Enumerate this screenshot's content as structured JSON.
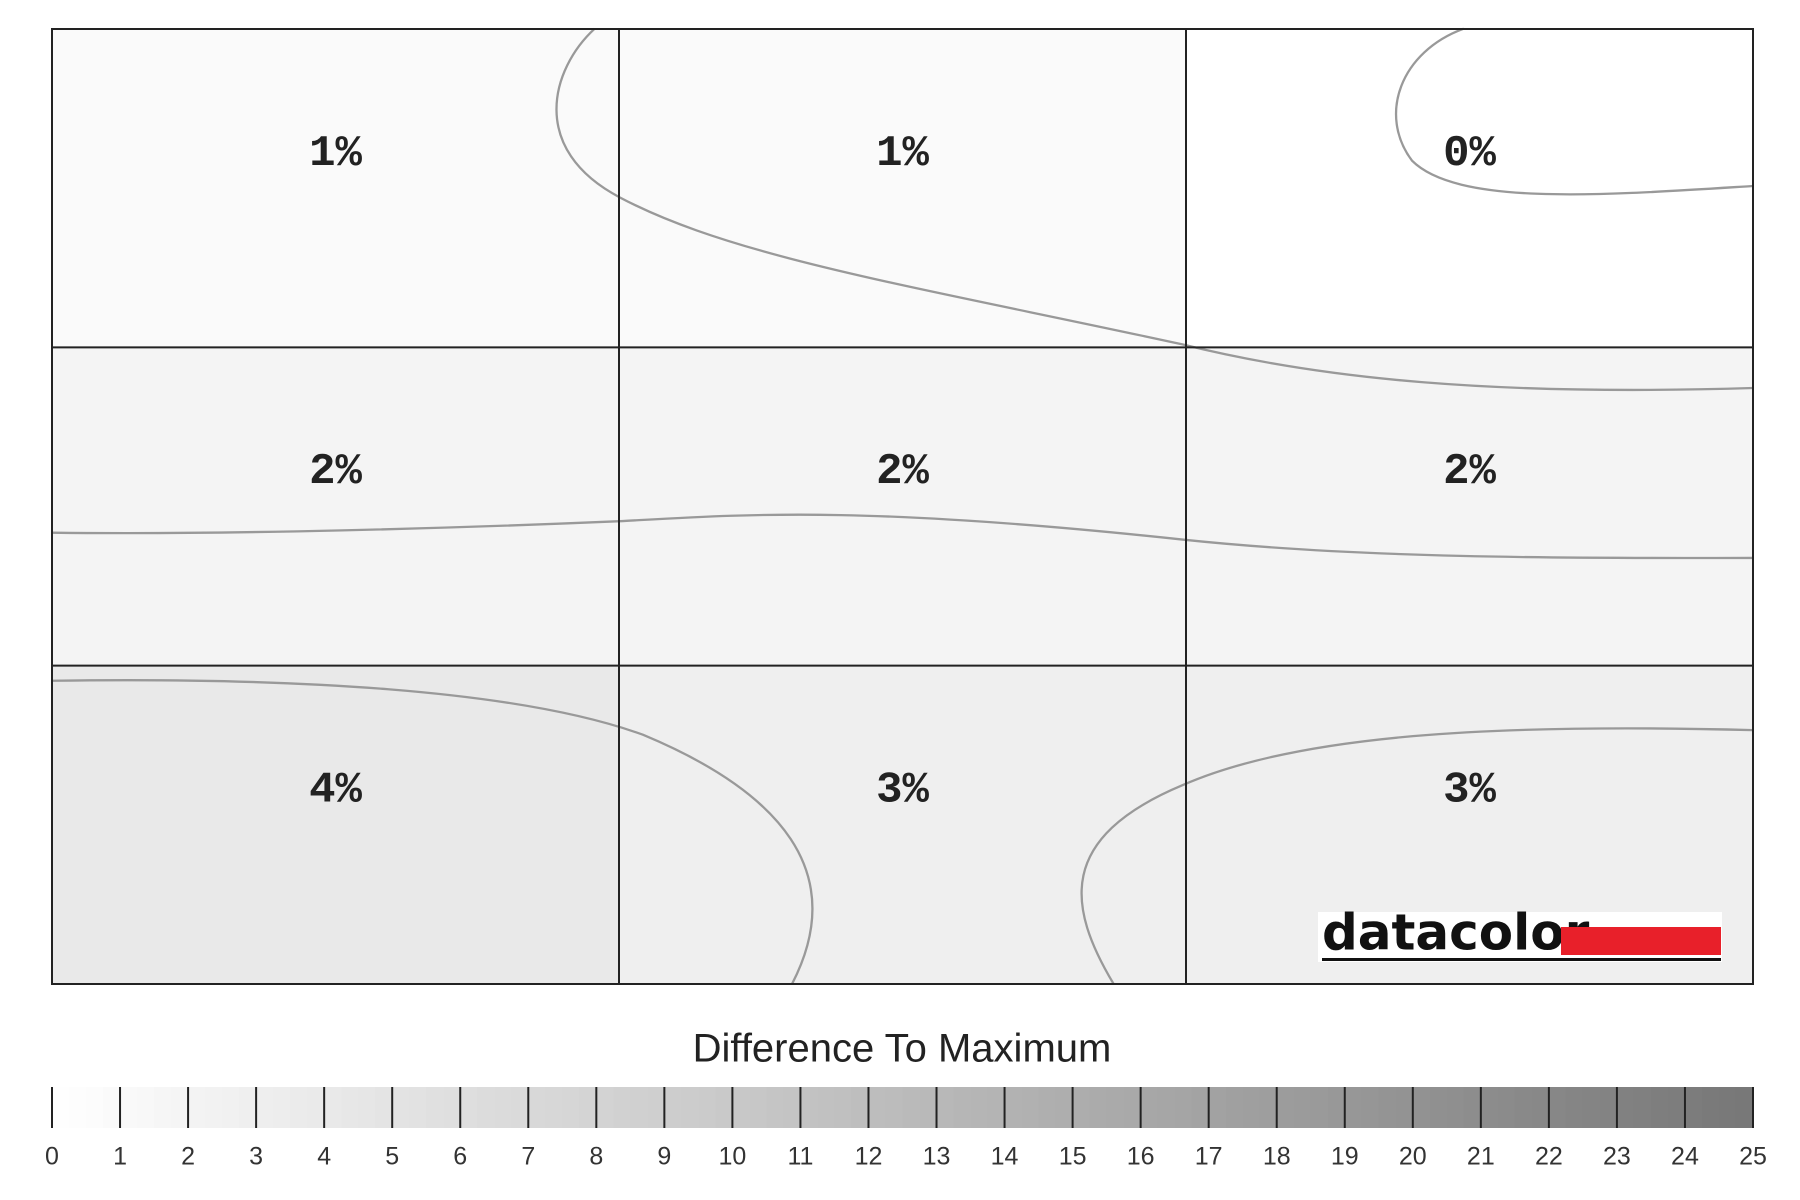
{
  "chart_data": {
    "type": "heatmap",
    "values": [
      [
        1,
        1,
        0
      ],
      [
        2,
        2,
        2
      ],
      [
        4,
        3,
        3
      ]
    ],
    "value_labels": [
      [
        "1%",
        "1%",
        "0%"
      ],
      [
        "2%",
        "2%",
        "2%"
      ],
      [
        "4%",
        "3%",
        "3%"
      ]
    ],
    "colormap": [
      "#ffffff",
      "#777777"
    ],
    "colorbar": {
      "title": "Difference To Maximum",
      "lim": [
        0,
        25
      ],
      "ticks": [
        0,
        1,
        2,
        3,
        4,
        5,
        6,
        7,
        8,
        9,
        10,
        11,
        12,
        13,
        14,
        15,
        16,
        17,
        18,
        19,
        20,
        21,
        22,
        23,
        24,
        25
      ]
    },
    "logo": "datacolor"
  }
}
